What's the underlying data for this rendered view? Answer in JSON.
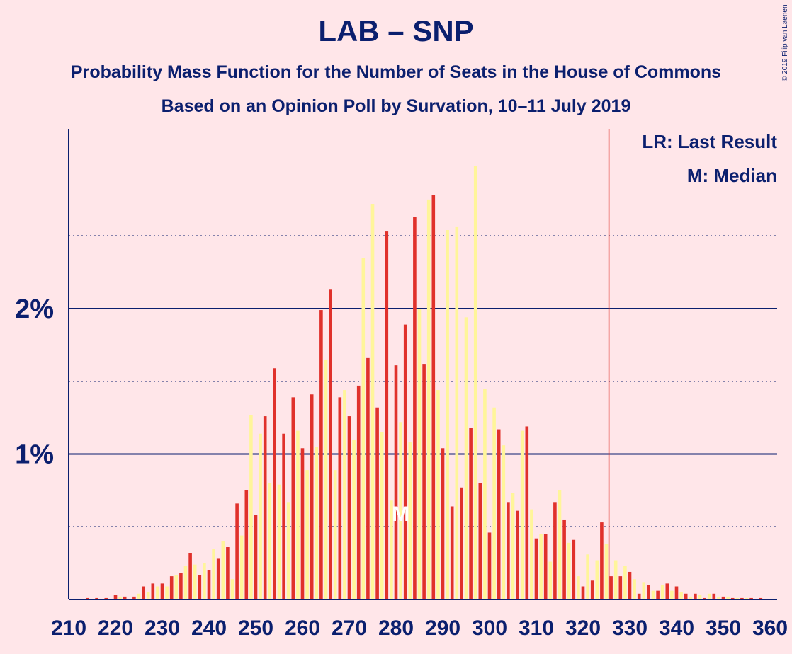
{
  "title": "LAB – SNP",
  "subtitle_1": "Probability Mass Function for the Number of Seats in the House of Commons",
  "subtitle_2": "Based on an Opinion Poll by Survation, 10–11 July 2019",
  "copyright": "© 2019 Filip van Laenen",
  "legend": {
    "last_result": "LR: Last Result",
    "median": "M: Median"
  },
  "median_marker": "M",
  "colors": {
    "background": "#ffe6e9",
    "text": "#0b1f6e",
    "bar_a": "#e0312b",
    "bar_b": "#fff59a",
    "last_result_line": "#e0312b"
  },
  "chart_data": {
    "type": "bar",
    "xlabel": "",
    "ylabel": "",
    "xlim": [
      210,
      360
    ],
    "ylim": [
      0,
      0.031
    ],
    "x_ticks": [
      210,
      220,
      230,
      240,
      250,
      260,
      270,
      280,
      290,
      300,
      310,
      320,
      330,
      340,
      350,
      360
    ],
    "x_tick_labels": [
      "210",
      "220",
      "230",
      "240",
      "250",
      "260",
      "270",
      "280",
      "290",
      "300",
      "310",
      "320",
      "330",
      "340",
      "350",
      "360"
    ],
    "y_ticks_major": [
      0.01,
      0.02
    ],
    "y_tick_labels": [
      "1%",
      "2%"
    ],
    "y_ticks_minor": [
      0.005,
      0.015,
      0.025
    ],
    "last_result": 326,
    "median": 281,
    "x": [
      211,
      212,
      213,
      214,
      215,
      216,
      217,
      218,
      219,
      220,
      221,
      222,
      223,
      224,
      225,
      226,
      227,
      228,
      229,
      230,
      231,
      232,
      233,
      234,
      235,
      236,
      237,
      238,
      239,
      240,
      241,
      242,
      243,
      244,
      245,
      246,
      247,
      248,
      249,
      250,
      251,
      252,
      253,
      254,
      255,
      256,
      257,
      258,
      259,
      260,
      261,
      262,
      263,
      264,
      265,
      266,
      267,
      268,
      269,
      270,
      271,
      272,
      273,
      274,
      275,
      276,
      277,
      278,
      279,
      280,
      281,
      282,
      283,
      284,
      285,
      286,
      287,
      288,
      289,
      290,
      291,
      292,
      293,
      294,
      295,
      296,
      297,
      298,
      299,
      300,
      301,
      302,
      303,
      304,
      305,
      306,
      307,
      308,
      309,
      310,
      311,
      312,
      313,
      314,
      315,
      316,
      317,
      318,
      319,
      320,
      321,
      322,
      323,
      324,
      325,
      326,
      327,
      328,
      329,
      330,
      331,
      332,
      333,
      334,
      335,
      336,
      337,
      338,
      339,
      340,
      341,
      342,
      343,
      344,
      345,
      346,
      347,
      348,
      349,
      350,
      351,
      352,
      353,
      354,
      355,
      356,
      357,
      358,
      359
    ],
    "values": [
      0.0,
      0.0,
      0.0,
      0.0001,
      0.0,
      0.0001,
      0.0,
      0.0001,
      0.0,
      0.0003,
      0.0002,
      0.0002,
      0.0,
      0.0002,
      0.0004,
      0.0009,
      0.0005,
      0.0011,
      0.0009,
      0.0011,
      0.0009,
      0.0016,
      0.0017,
      0.0018,
      0.0023,
      0.0032,
      0.0024,
      0.0017,
      0.0025,
      0.002,
      0.0035,
      0.0028,
      0.004,
      0.0036,
      0.0014,
      0.0066,
      0.0044,
      0.0075,
      0.0127,
      0.0058,
      0.0114,
      0.0126,
      0.008,
      0.0159,
      0.0079,
      0.0114,
      0.0067,
      0.0139,
      0.0116,
      0.0104,
      0.0089,
      0.0141,
      0.0105,
      0.0199,
      0.0165,
      0.0213,
      0.0089,
      0.0139,
      0.0144,
      0.0126,
      0.011,
      0.0147,
      0.0235,
      0.0166,
      0.0272,
      0.0132,
      0.0115,
      0.0253,
      0.0068,
      0.0161,
      0.0122,
      0.0189,
      0.0108,
      0.0263,
      0.02,
      0.0162,
      0.0275,
      0.0278,
      0.0144,
      0.0104,
      0.0254,
      0.0064,
      0.0256,
      0.0077,
      0.0194,
      0.0118,
      0.0298,
      0.008,
      0.0145,
      0.0046,
      0.0132,
      0.0117,
      0.0106,
      0.0067,
      0.0073,
      0.0061,
      0.0116,
      0.0119,
      0.0062,
      0.0042,
      0.0045,
      0.0045,
      0.0026,
      0.0067,
      0.0075,
      0.0055,
      0.0039,
      0.0041,
      0.0016,
      0.0009,
      0.0031,
      0.0013,
      0.0027,
      0.0053,
      0.0038,
      0.0016,
      0.0027,
      0.0016,
      0.0023,
      0.0019,
      0.0014,
      0.0004,
      0.0012,
      0.001,
      0.0006,
      0.0006,
      0.001,
      0.0011,
      0.0006,
      0.0009,
      0.0005,
      0.0004,
      0.0002,
      0.0004,
      0.0003,
      0.0001,
      0.0004,
      0.0004,
      0.0002,
      0.0002,
      0.0002,
      0.0001,
      0.0001,
      0.0001,
      0.0001,
      0.0001,
      0.0,
      0.0001,
      0.0
    ]
  }
}
